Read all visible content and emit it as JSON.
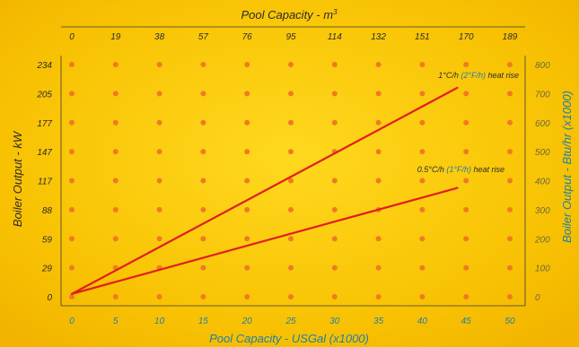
{
  "chart_data": {
    "type": "line",
    "x_bottom": {
      "label": "Pool Capacity - USGal (x1000)",
      "ticks": [
        "0",
        "5",
        "10",
        "15",
        "20",
        "25",
        "30",
        "35",
        "40",
        "45",
        "50"
      ],
      "range": [
        0,
        50
      ]
    },
    "x_top": {
      "label_main": "Pool Capacity - m",
      "label_sup": "3",
      "ticks": [
        "0",
        "19",
        "38",
        "57",
        "76",
        "95",
        "114",
        "132",
        "151",
        "170",
        "189"
      ]
    },
    "y_left": {
      "label": "Boiler Output - kW",
      "ticks": [
        "0",
        "29",
        "59",
        "88",
        "117",
        "147",
        "177",
        "205",
        "234"
      ]
    },
    "y_right": {
      "label": "Boiler Output - Btu/hr (x1000)",
      "ticks": [
        "0",
        "100",
        "200",
        "300",
        "400",
        "500",
        "600",
        "700",
        "800"
      ],
      "range": [
        0,
        800
      ]
    },
    "series": [
      {
        "name_pre": "1°C/h ",
        "name_mid": "(2°F/h)",
        "name_post": " heat rise",
        "x": [
          0,
          44
        ],
        "y": [
          10,
          720
        ]
      },
      {
        "name_pre": "0.5°C/h ",
        "name_mid": "(1°F/h)",
        "name_post": " heat rise",
        "x": [
          0,
          44
        ],
        "y": [
          10,
          375
        ]
      }
    ],
    "colors": {
      "background": "#f8c203",
      "background_edge": "#ffde3a",
      "line": "#e01e1e",
      "dot": "#f07a22",
      "text": "#2b2b2b",
      "accent_text": "#1f7fa8",
      "right_text": "#6b6b3a"
    },
    "grid": "dots",
    "legend": "inline-annotations"
  }
}
